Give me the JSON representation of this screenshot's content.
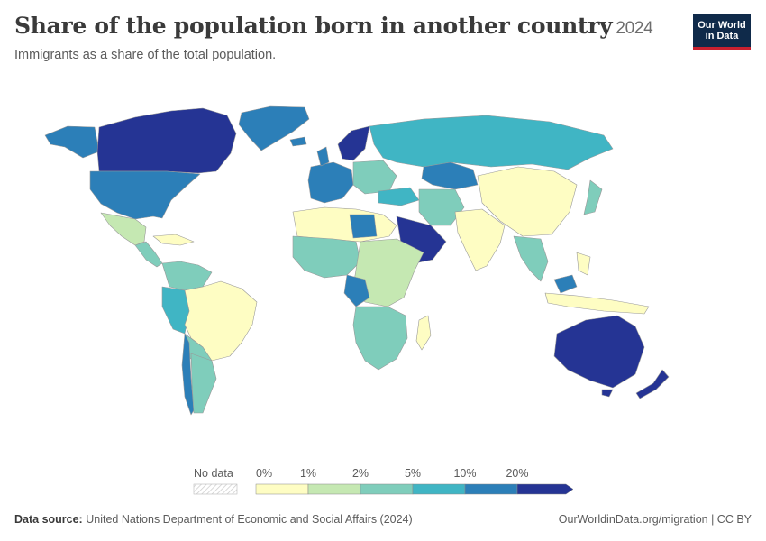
{
  "header": {
    "title": "Share of the population born in another country",
    "year": "2024",
    "subtitle": "Immigrants as a share of the total population."
  },
  "logo": {
    "line1": "Our World",
    "line2": "in Data"
  },
  "legend": {
    "no_data_label": "No data",
    "bins": [
      {
        "label": "0%",
        "color": "#fefdc3"
      },
      {
        "label": "1%",
        "color": "#c5e8b2"
      },
      {
        "label": "2%",
        "color": "#7fcdbb"
      },
      {
        "label": "5%",
        "color": "#40b5c4"
      },
      {
        "label": "10%",
        "color": "#2c7fb8"
      },
      {
        "label": "20%",
        "color": "#253494"
      }
    ]
  },
  "footer": {
    "source_label": "Data source:",
    "source_text": "United Nations Department of Economic and Social Affairs (2024)",
    "url": "OurWorldinData.org/migration | CC BY"
  }
}
